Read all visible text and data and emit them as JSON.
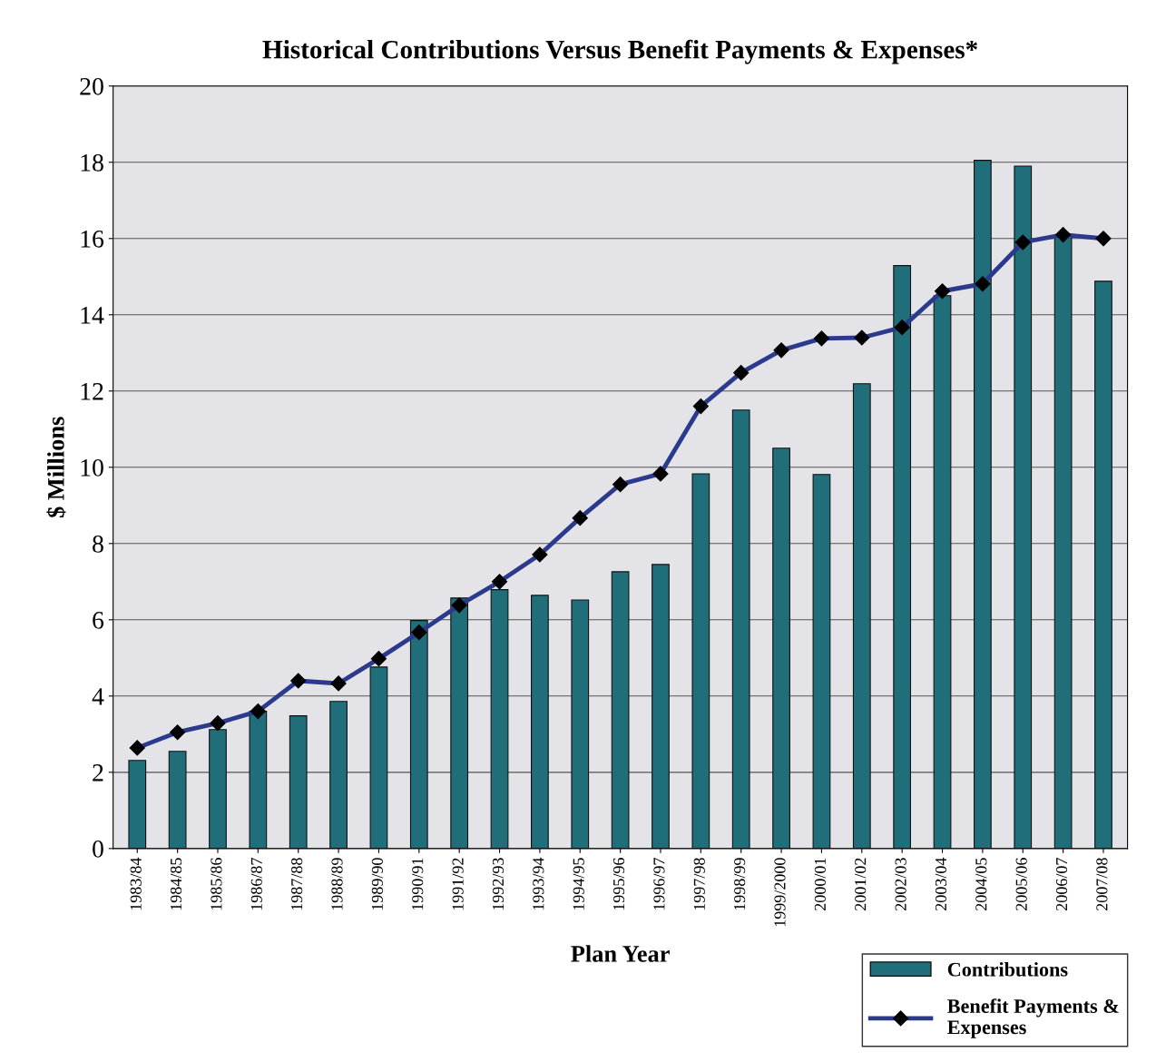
{
  "chart_data": {
    "type": "bar",
    "title": "Historical Contributions Versus Benefit Payments & Expenses*",
    "xlabel": "Plan Year",
    "ylabel": "$ Millions",
    "categories": [
      "1983/84",
      "1984/85",
      "1985/86",
      "1986/87",
      "1987/88",
      "1988/89",
      "1989/90",
      "1990/91",
      "1991/92",
      "1992/93",
      "1993/94",
      "1994/95",
      "1995/96",
      "1996/97",
      "1997/98",
      "1998/99",
      "1999/2000",
      "2000/01",
      "2001/02",
      "2002/03",
      "2003/04",
      "2004/05",
      "2005/06",
      "2006/07",
      "2007/08"
    ],
    "series": [
      {
        "name": "Contributions",
        "color": "#1f6e7a",
        "values": [
          2.31,
          2.55,
          3.12,
          3.6,
          3.48,
          3.86,
          4.76,
          5.98,
          6.57,
          6.79,
          6.64,
          6.52,
          7.26,
          7.45,
          9.83,
          11.5,
          10.5,
          9.81,
          12.19,
          15.29,
          14.5,
          18.05,
          17.9,
          16.1,
          14.88
        ]
      },
      {
        "name": "Benefit Payments &\nExpenses",
        "type": "line",
        "color": "#2b3a8c",
        "marker": "diamond",
        "line_style": "solid",
        "values": [
          2.64,
          3.05,
          3.29,
          3.6,
          4.4,
          4.33,
          4.98,
          5.67,
          6.38,
          7.0,
          7.71,
          8.67,
          9.55,
          9.83,
          11.6,
          12.48,
          13.07,
          13.38,
          13.4,
          13.67,
          14.62,
          14.81,
          15.9,
          16.1,
          16.0
        ]
      }
    ],
    "ylim": [
      0,
      20
    ],
    "yticks": [
      0,
      2,
      4,
      6,
      8,
      10,
      12,
      14,
      16,
      18,
      20
    ],
    "grid": "y",
    "legend": "bottom right"
  }
}
